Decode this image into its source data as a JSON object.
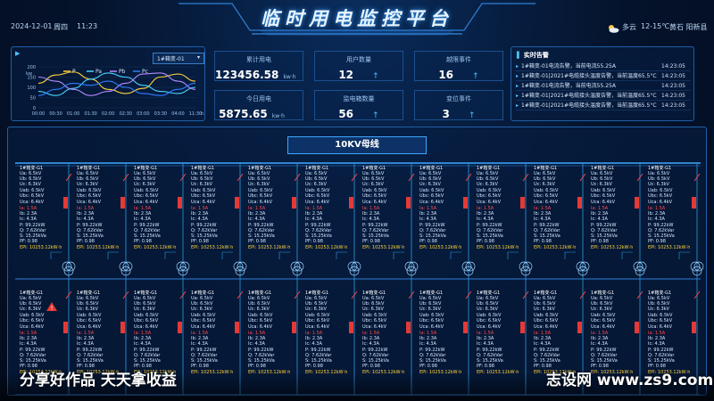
{
  "header": {
    "title": "临时用电监控平台",
    "date": "2024-12-01",
    "weekday": "周四",
    "time": "11:23",
    "weather": "多云",
    "temperature": "12-15℃",
    "location": "黄石 阳新县"
  },
  "chart_panel": {
    "dropdown": "1#箱变-01",
    "legend": [
      "P",
      "Pa",
      "Pb",
      "Pc"
    ],
    "y_unit": "kw",
    "x_unit": "h",
    "colors": [
      "#ffd23a",
      "#47d6ff",
      "#b18bff",
      "#2f7dff"
    ]
  },
  "chart_data": {
    "type": "line",
    "x": [
      "00:00",
      "00:30",
      "01:00",
      "01:30",
      "02:00",
      "02:30",
      "03:00",
      "03:30",
      "04:00",
      "11:30"
    ],
    "yticks": [
      0,
      50,
      100,
      150,
      200
    ],
    "ylabel": "kw",
    "xlabel": "h",
    "ylim": [
      0,
      200
    ],
    "series": [
      {
        "name": "P",
        "values": [
          120,
          160,
          175,
          140,
          90,
          70,
          95,
          150,
          165,
          130
        ]
      },
      {
        "name": "Pa",
        "values": [
          80,
          60,
          95,
          140,
          170,
          150,
          110,
          80,
          70,
          100
        ]
      },
      {
        "name": "Pb",
        "values": [
          150,
          130,
          90,
          60,
          80,
          120,
          165,
          170,
          130,
          90
        ]
      },
      {
        "name": "Pc",
        "values": [
          60,
          90,
          120,
          110,
          130,
          100,
          70,
          60,
          90,
          120
        ]
      }
    ]
  },
  "stats": [
    {
      "label": "累计用电",
      "value": "123456.58",
      "unit": "kw·h",
      "arrow": ""
    },
    {
      "label": "用户数量",
      "value": "12",
      "unit": "",
      "arrow": "↑"
    },
    {
      "label": "越限事件",
      "value": "16",
      "unit": "",
      "arrow": "↑"
    },
    {
      "label": "今日用电",
      "value": "5875.65",
      "unit": "kw·h",
      "arrow": ""
    },
    {
      "label": "监电箱数量",
      "value": "56",
      "unit": "",
      "arrow": "↑"
    },
    {
      "label": "变位事件",
      "value": "3",
      "unit": "",
      "arrow": "↑"
    }
  ],
  "alarms": {
    "title": "实时告警",
    "items": [
      {
        "text": "1#箱变-01电流告警，当前电流55.25A",
        "time": "14:23:05"
      },
      {
        "text": "1#箱变-01|2021#电缆接头温度告警，当前温度65.5°C",
        "time": "14:23:05"
      },
      {
        "text": "1#箱变-01电流告警，当前电流55.25A",
        "time": "14:23:05"
      },
      {
        "text": "1#箱变-01|2021#电缆接头温度告警，当前温度65.5°C",
        "time": "14:23:05"
      },
      {
        "text": "1#箱变-01|2021#电缆接头温度告警，当前温度65.5°C",
        "time": "14:23:05"
      }
    ]
  },
  "bus": {
    "label": "10KV母线"
  },
  "cell_template": {
    "name": "1#箱变-G1",
    "ua": "Ua: 6.5kV",
    "ub": "Ub: 6.5kV",
    "uc": "Uc: 6.3kV",
    "uab": "Uab: 6.5kV",
    "ubc": "Ubc: 6.5kV",
    "uca": "Uca: 6.4kV",
    "ia": "Ia: 1.5A",
    "ib": "Ib: 2.3A",
    "ic": "Ic: 4.3A",
    "p": "P: 99.22kW",
    "q": "Q: 7.62kVar",
    "s": "S: 15.25kVa",
    "pf": "PF: 0.98",
    "epi": "EPI: 10253.12kW·h"
  },
  "watermark": {
    "left": "分享好作品 天天拿收益",
    "right": "志设网 www.zs9.com"
  }
}
